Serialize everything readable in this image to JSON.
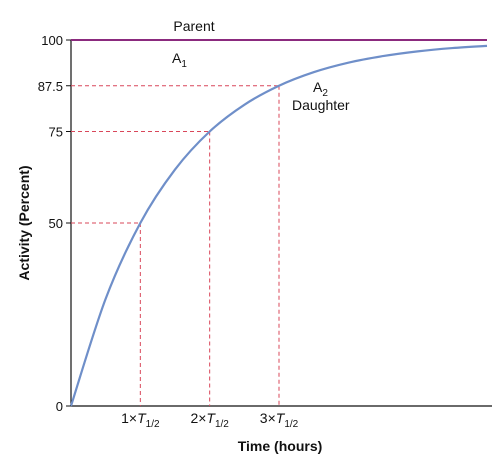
{
  "chart_data": {
    "type": "line",
    "xlabel": "Time  (hours)",
    "ylabel": "Activity (Percent)",
    "ylim": [
      0,
      100
    ],
    "xlim": [
      0,
      6
    ],
    "grid": false,
    "y_ticks": [
      {
        "value": 0,
        "label": "0"
      },
      {
        "value": 50,
        "label": "50"
      },
      {
        "value": 75,
        "label": "75"
      },
      {
        "value": 87.5,
        "label": "87.5"
      },
      {
        "value": 100,
        "label": "100"
      }
    ],
    "x_ticks": [
      {
        "value": 1,
        "prefix": "1×",
        "italic": "T",
        "sub": "1/2"
      },
      {
        "value": 2,
        "prefix": "2×",
        "italic": "T",
        "sub": "1/2"
      },
      {
        "value": 3,
        "prefix": "3×",
        "italic": "T",
        "sub": "1/2"
      }
    ],
    "series": [
      {
        "name": "Parent",
        "color": "#8b2a7e",
        "x": [
          0,
          6
        ],
        "y": [
          100,
          100
        ]
      },
      {
        "name": "Daughter",
        "color": "#6f8fc9",
        "x": [
          0,
          0.5,
          1,
          1.5,
          2,
          2.5,
          3,
          3.5,
          4,
          4.5,
          5,
          5.5,
          6
        ],
        "y": [
          0,
          29.3,
          50,
          64.6,
          75,
          82.3,
          87.5,
          91.2,
          93.8,
          95.6,
          96.9,
          97.8,
          98.4
        ]
      }
    ],
    "reference_lines": [
      {
        "x": 1,
        "y": 50
      },
      {
        "x": 2,
        "y": 75
      },
      {
        "x": 3,
        "y": 87.5
      }
    ],
    "reference_color": "#d9475a",
    "annotations": {
      "parent_label": "Parent",
      "a1_main": "A",
      "a1_sub": "1",
      "a2_main": "A",
      "a2_sub": "2",
      "daughter_label": "Daughter"
    }
  }
}
